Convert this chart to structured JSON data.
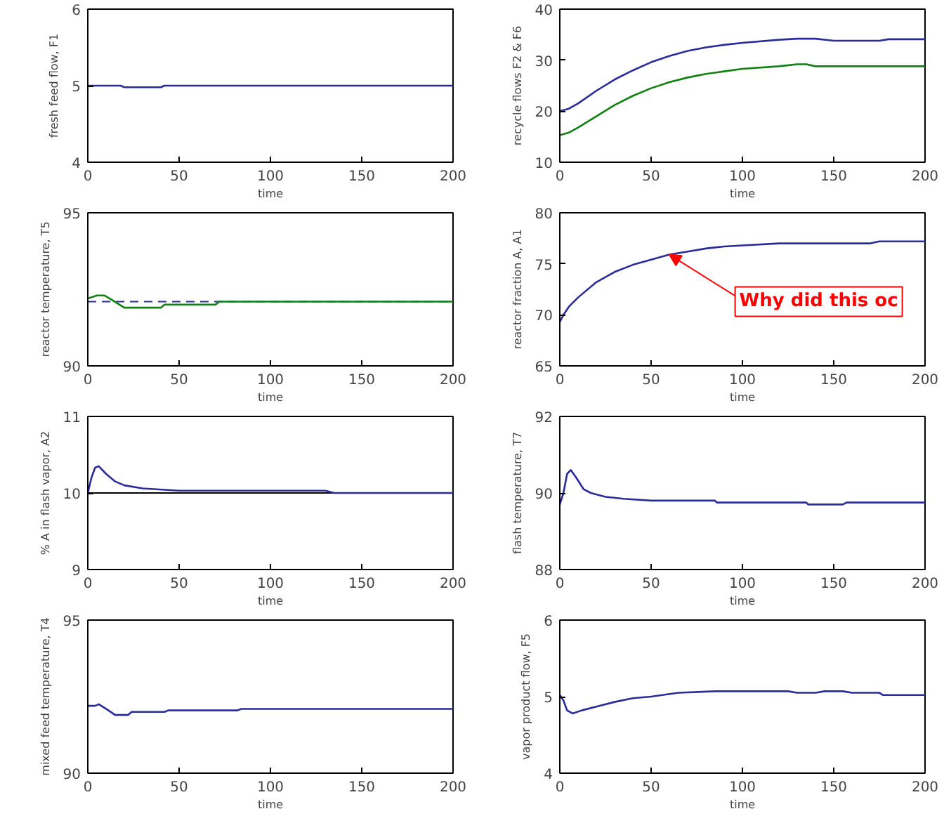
{
  "chart_data": [
    {
      "type": "line",
      "xlabel": "time",
      "ylabel": "fresh feed flow, F1",
      "xlim": [
        0,
        200
      ],
      "xticks": [
        0,
        50,
        100,
        150,
        200
      ],
      "ylim": [
        4,
        6
      ],
      "yticks": [
        4,
        5,
        6
      ],
      "series": [
        {
          "color": "#2b2b9c",
          "x": [
            0,
            18,
            20,
            40,
            42,
            200
          ],
          "values": [
            5,
            5,
            4.98,
            4.98,
            5,
            5
          ]
        }
      ]
    },
    {
      "type": "line",
      "xlabel": "time",
      "ylabel": "recycle flows F2 & F6",
      "xlim": [
        0,
        200
      ],
      "xticks": [
        0,
        50,
        100,
        150,
        200
      ],
      "ylim": [
        10,
        40
      ],
      "yticks": [
        10,
        20,
        30,
        40
      ],
      "series": [
        {
          "color": "#2b2b9c",
          "x": [
            0,
            5,
            10,
            20,
            30,
            40,
            50,
            60,
            70,
            80,
            90,
            100,
            120,
            130,
            140,
            150,
            175,
            180,
            200
          ],
          "values": [
            20,
            20.5,
            21.5,
            24,
            26.2,
            28,
            29.6,
            30.8,
            31.8,
            32.5,
            33,
            33.4,
            34,
            34.2,
            34.2,
            33.8,
            33.8,
            34.1,
            34.1
          ]
        },
        {
          "color": "#108010",
          "x": [
            0,
            5,
            10,
            20,
            30,
            40,
            50,
            60,
            70,
            80,
            90,
            100,
            120,
            130,
            135,
            140,
            200
          ],
          "values": [
            15.3,
            15.8,
            16.8,
            19,
            21.2,
            23,
            24.5,
            25.7,
            26.6,
            27.3,
            27.8,
            28.3,
            28.8,
            29.2,
            29.2,
            28.8,
            28.8
          ]
        }
      ]
    },
    {
      "type": "line",
      "xlabel": "time",
      "ylabel": "reactor temperature, T5",
      "xlim": [
        0,
        200
      ],
      "xticks": [
        0,
        50,
        100,
        150,
        200
      ],
      "ylim": [
        90,
        95
      ],
      "yticks": [
        90,
        95
      ],
      "series": [
        {
          "color": "#108010",
          "x": [
            0,
            5,
            9,
            12,
            20,
            40,
            42,
            70,
            72,
            200
          ],
          "values": [
            92.2,
            92.3,
            92.3,
            92.2,
            91.9,
            91.9,
            92,
            92,
            92.1,
            92.1
          ]
        }
      ],
      "ref_lines": [
        {
          "axis": "y",
          "value": 92.1,
          "color": "#2b2b9c",
          "line_style": "dashed"
        }
      ]
    },
    {
      "type": "line",
      "xlabel": "time",
      "ylabel": "reactor fraction A, A1",
      "xlim": [
        0,
        200
      ],
      "xticks": [
        0,
        50,
        100,
        150,
        200
      ],
      "ylim": [
        65,
        80
      ],
      "yticks": [
        65,
        70,
        75,
        80
      ],
      "series": [
        {
          "color": "#2b2b9c",
          "x": [
            0,
            2,
            5,
            10,
            20,
            30,
            40,
            50,
            60,
            70,
            80,
            90,
            100,
            120,
            170,
            175,
            200
          ],
          "values": [
            69.3,
            70,
            70.8,
            71.7,
            73.2,
            74.2,
            74.9,
            75.4,
            75.9,
            76.2,
            76.5,
            76.7,
            76.8,
            77,
            77,
            77.2,
            77.2
          ]
        }
      ],
      "annotations": [
        {
          "text": "Why did this oc",
          "x": 60,
          "y": 75.9
        }
      ]
    },
    {
      "type": "line",
      "xlabel": "time",
      "ylabel": "% A in flash vapor, A2",
      "xlim": [
        0,
        200
      ],
      "xticks": [
        0,
        50,
        100,
        150,
        200
      ],
      "ylim": [
        9,
        11
      ],
      "yticks": [
        9,
        10,
        11
      ],
      "series": [
        {
          "color": "#2b2b9c",
          "x": [
            0,
            2,
            4,
            6,
            10,
            15,
            20,
            30,
            50,
            130,
            135,
            200
          ],
          "values": [
            10,
            10.2,
            10.33,
            10.35,
            10.25,
            10.15,
            10.1,
            10.06,
            10.03,
            10.03,
            10,
            10
          ]
        }
      ],
      "ref_lines": [
        {
          "axis": "y",
          "value": 10,
          "color": "#000000",
          "line_style": "solid"
        }
      ]
    },
    {
      "type": "line",
      "xlabel": "time",
      "ylabel": "flash temperature, T7",
      "xlim": [
        0,
        200
      ],
      "xticks": [
        0,
        50,
        100,
        150,
        200
      ],
      "ylim": [
        88,
        92
      ],
      "yticks": [
        88,
        90,
        92
      ],
      "series": [
        {
          "color": "#2b2b9c",
          "x": [
            0,
            2,
            4,
            6,
            9,
            13,
            17,
            25,
            35,
            50,
            85,
            86,
            135,
            136,
            155,
            157,
            200
          ],
          "values": [
            89.7,
            90,
            90.5,
            90.6,
            90.4,
            90.1,
            90,
            89.9,
            89.85,
            89.8,
            89.8,
            89.75,
            89.75,
            89.7,
            89.7,
            89.75,
            89.75
          ]
        }
      ]
    },
    {
      "type": "line",
      "xlabel": "time",
      "ylabel": "mixed feed temperature, T4",
      "xlim": [
        0,
        200
      ],
      "xticks": [
        0,
        50,
        100,
        150,
        200
      ],
      "ylim": [
        90,
        95
      ],
      "yticks": [
        90,
        95
      ],
      "series": [
        {
          "color": "#2b2b9c",
          "x": [
            0,
            4,
            6,
            10,
            15,
            22,
            24,
            42,
            44,
            82,
            84,
            200
          ],
          "values": [
            92.2,
            92.2,
            92.25,
            92.1,
            91.9,
            91.9,
            92,
            92,
            92.05,
            92.05,
            92.1,
            92.1
          ]
        }
      ]
    },
    {
      "type": "line",
      "xlabel": "time",
      "ylabel": "vapor product flow, F5",
      "xlim": [
        0,
        200
      ],
      "xticks": [
        0,
        50,
        100,
        150,
        200
      ],
      "ylim": [
        4,
        6
      ],
      "yticks": [
        4,
        5,
        6
      ],
      "series": [
        {
          "color": "#2b2b9c",
          "x": [
            0,
            2,
            4,
            7,
            12,
            20,
            30,
            40,
            50,
            65,
            85,
            125,
            130,
            140,
            145,
            155,
            160,
            175,
            177,
            200
          ],
          "values": [
            5.02,
            4.95,
            4.82,
            4.78,
            4.82,
            4.87,
            4.93,
            4.98,
            5,
            5.05,
            5.07,
            5.07,
            5.05,
            5.05,
            5.07,
            5.07,
            5.05,
            5.05,
            5.02,
            5.02
          ]
        }
      ]
    }
  ]
}
